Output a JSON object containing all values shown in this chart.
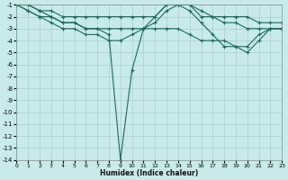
{
  "background_color": "#c8eaea",
  "grid_color": "#b0d4d4",
  "line_color": "#1a6b5a",
  "xlabel": "Humidex (Indice chaleur)",
  "ylim_bottom": -14,
  "ylim_top": -1,
  "xlim": [
    0,
    23
  ],
  "yticks": [
    -1,
    -2,
    -3,
    -4,
    -5,
    -6,
    -7,
    -8,
    -9,
    -10,
    -11,
    -12,
    -13,
    -14
  ],
  "xticks": [
    0,
    1,
    2,
    3,
    4,
    5,
    6,
    7,
    8,
    9,
    10,
    11,
    12,
    13,
    14,
    15,
    16,
    17,
    18,
    19,
    20,
    21,
    22,
    23
  ],
  "curves": [
    {
      "x": [
        0,
        1,
        2,
        3,
        4,
        5,
        6,
        7,
        8,
        9,
        10,
        11,
        12,
        13,
        14,
        15,
        16,
        17,
        18,
        19,
        20,
        21,
        22,
        23
      ],
      "y": [
        -1,
        -1,
        -1.5,
        -2,
        -2.5,
        -2.5,
        -3,
        -3,
        -3.5,
        -14,
        -6.5,
        -3,
        -2,
        -1,
        -1,
        -1,
        -2,
        -2,
        -2.5,
        -2.5,
        -3,
        -3,
        -3,
        -3
      ]
    },
    {
      "x": [
        0,
        1,
        2,
        3,
        4,
        5,
        6,
        7,
        8,
        9,
        10,
        11,
        12,
        13,
        14,
        15,
        16,
        17,
        18,
        19,
        20,
        21,
        22,
        23
      ],
      "y": [
        -1,
        -1,
        -1.5,
        -1.5,
        -2,
        -2,
        -2,
        -2,
        -2,
        -2,
        -2,
        -2,
        -2,
        -1,
        -1,
        -1,
        -1.5,
        -2,
        -2,
        -2,
        -2,
        -2.5,
        -2.5,
        -2.5
      ]
    },
    {
      "x": [
        0,
        1,
        2,
        3,
        4,
        5,
        6,
        7,
        8,
        9,
        10,
        11,
        12,
        13,
        14,
        15,
        16,
        17,
        18,
        19,
        20,
        21,
        22,
        23
      ],
      "y": [
        -1,
        -1.5,
        -2,
        -2,
        -2.5,
        -2.5,
        -3,
        -3,
        -3,
        -3,
        -3,
        -3,
        -3,
        -3,
        -3,
        -3.5,
        -4,
        -4,
        -4,
        -4.5,
        -4.5,
        -3.5,
        -3,
        -3
      ]
    },
    {
      "x": [
        0,
        1,
        2,
        3,
        4,
        5,
        6,
        7,
        8,
        9,
        10,
        11,
        12,
        13,
        14,
        15,
        16,
        17,
        18,
        19,
        20,
        21,
        22,
        23
      ],
      "y": [
        -1,
        -1.5,
        -2,
        -2.5,
        -3,
        -3,
        -3.5,
        -3.5,
        -4,
        -4,
        -3.5,
        -3,
        -2.5,
        -1.5,
        -1,
        -1.5,
        -2.5,
        -3.5,
        -4.5,
        -4.5,
        -5,
        -4,
        -3,
        -3
      ]
    }
  ]
}
